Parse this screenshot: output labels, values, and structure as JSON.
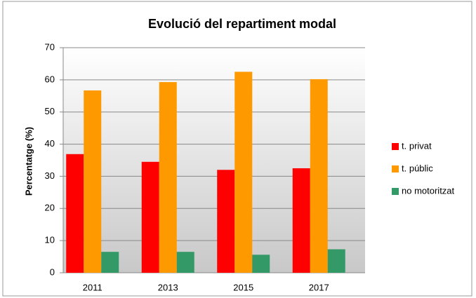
{
  "chart_data": {
    "type": "bar",
    "title": "Evolució del repartiment modal",
    "y_label": "Percentatge (%)",
    "categories": [
      "2011",
      "2013",
      "2015",
      "2017"
    ],
    "series": [
      {
        "name": "t. privat",
        "color": "#ff0000",
        "values": [
          36.9,
          34.5,
          32.0,
          32.5
        ]
      },
      {
        "name": "t. públic",
        "color": "#ff9900",
        "values": [
          56.7,
          59.3,
          62.5,
          60.2
        ]
      },
      {
        "name": "no motoritzat",
        "color": "#339966",
        "values": [
          6.5,
          6.5,
          5.6,
          7.3
        ]
      }
    ],
    "ylim": [
      0,
      70
    ],
    "yticks": [
      0,
      10,
      20,
      30,
      40,
      50,
      60,
      70
    ],
    "grid": true,
    "legend": "right"
  }
}
